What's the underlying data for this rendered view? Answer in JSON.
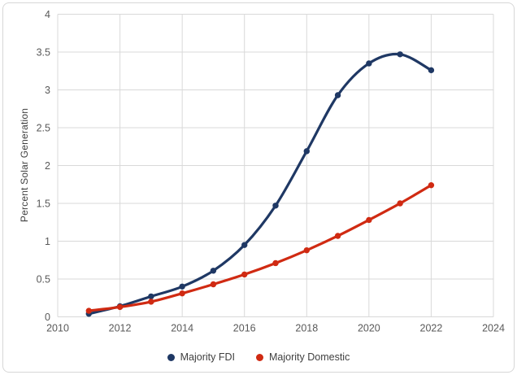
{
  "window": {
    "background_color": "#FFFFFF",
    "frame_border_color": "#D7D7D7"
  },
  "styles": {
    "grid_color": "#D9D9D9",
    "tick_label_color": "#595959",
    "axis_title_color": "#404040",
    "legend_text_color": "#404040"
  },
  "chart_data": {
    "type": "line",
    "title": "",
    "ylabel": "Percent Solar Generation",
    "x": [
      2011,
      2012,
      2013,
      2014,
      2015,
      2016,
      2017,
      2018,
      2019,
      2020,
      2021,
      2022
    ],
    "series": [
      {
        "id": "majority-fdi",
        "name": "Majority FDI",
        "color": "#1F3864",
        "values": [
          0.04,
          0.14,
          0.27,
          0.4,
          0.61,
          0.95,
          1.47,
          2.19,
          2.93,
          3.35,
          3.47,
          3.26
        ]
      },
      {
        "id": "majority-domestic",
        "name": "Majority Domestic",
        "color": "#D02A12",
        "values": [
          0.08,
          0.13,
          0.2,
          0.31,
          0.43,
          0.56,
          0.71,
          0.88,
          1.07,
          1.28,
          1.5,
          1.74
        ]
      }
    ],
    "xlim": [
      2010,
      2024
    ],
    "ylim": [
      0,
      4
    ],
    "xticks": [
      2010,
      2012,
      2014,
      2016,
      2018,
      2020,
      2022,
      2024
    ],
    "yticks": [
      0,
      0.5,
      1,
      1.5,
      2,
      2.5,
      3,
      3.5,
      4
    ],
    "grid": true,
    "smooth": true,
    "marker": "circle",
    "legend_position": "bottom"
  }
}
